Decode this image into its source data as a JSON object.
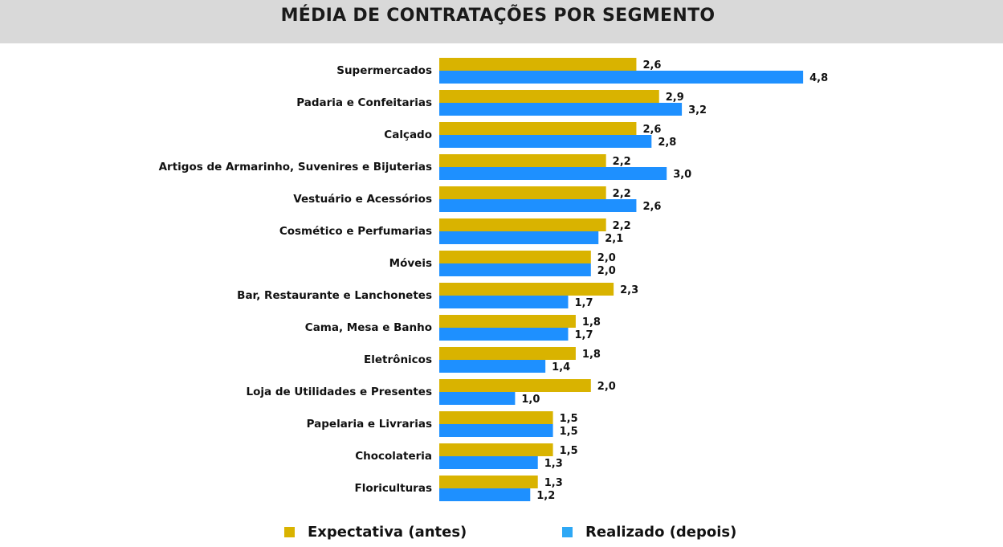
{
  "title": "MÉDIA DE CONTRATAÇÕES POR SEGMENTO",
  "chart_data": {
    "type": "bar",
    "orientation": "horizontal",
    "categories": [
      "Supermercados",
      "Padaria e Confeitarias",
      "Calçado",
      "Artigos de Armarinho, Suvenires e Bijuterias",
      "Vestuário e Acessórios",
      "Cosmético e Perfumarias",
      "Móveis",
      "Bar, Restaurante e Lanchonetes",
      "Cama, Mesa e Banho",
      "Eletrônicos",
      "Loja de Utilidades e Presentes",
      "Papelaria e Livrarias",
      "Chocolateria",
      "Floriculturas"
    ],
    "series": [
      {
        "name": "Expectativa (antes)",
        "color": "#d9b300",
        "values": [
          2.6,
          2.9,
          2.6,
          2.2,
          2.2,
          2.2,
          2.0,
          2.3,
          1.8,
          1.8,
          2.0,
          1.5,
          1.5,
          1.3
        ],
        "labels": [
          "2,6",
          "2,9",
          "2,6",
          "2,2",
          "2,2",
          "2,2",
          "2,0",
          "2,3",
          "1,8",
          "1,8",
          "2,0",
          "1,5",
          "1,5",
          "1,3"
        ]
      },
      {
        "name": "Realizado (depois)",
        "color": "#1e90ff",
        "values": [
          4.8,
          3.2,
          2.8,
          3.0,
          2.6,
          2.1,
          2.0,
          1.7,
          1.7,
          1.4,
          1.0,
          1.5,
          1.3,
          1.2
        ],
        "labels": [
          "4,8",
          "3,2",
          "2,8",
          "3,0",
          "2,6",
          "2,1",
          "2,0",
          "1,7",
          "1,7",
          "1,4",
          "1,0",
          "1,5",
          "1,3",
          "1,2"
        ]
      }
    ],
    "xlim": [
      0,
      4.8
    ],
    "grid": false,
    "legend_position": "bottom"
  },
  "legend": {
    "items": [
      {
        "label": "Expectativa (antes)",
        "color": "#d9b300"
      },
      {
        "label": "Realizado (depois)",
        "color": "#2ea8f5"
      }
    ]
  }
}
